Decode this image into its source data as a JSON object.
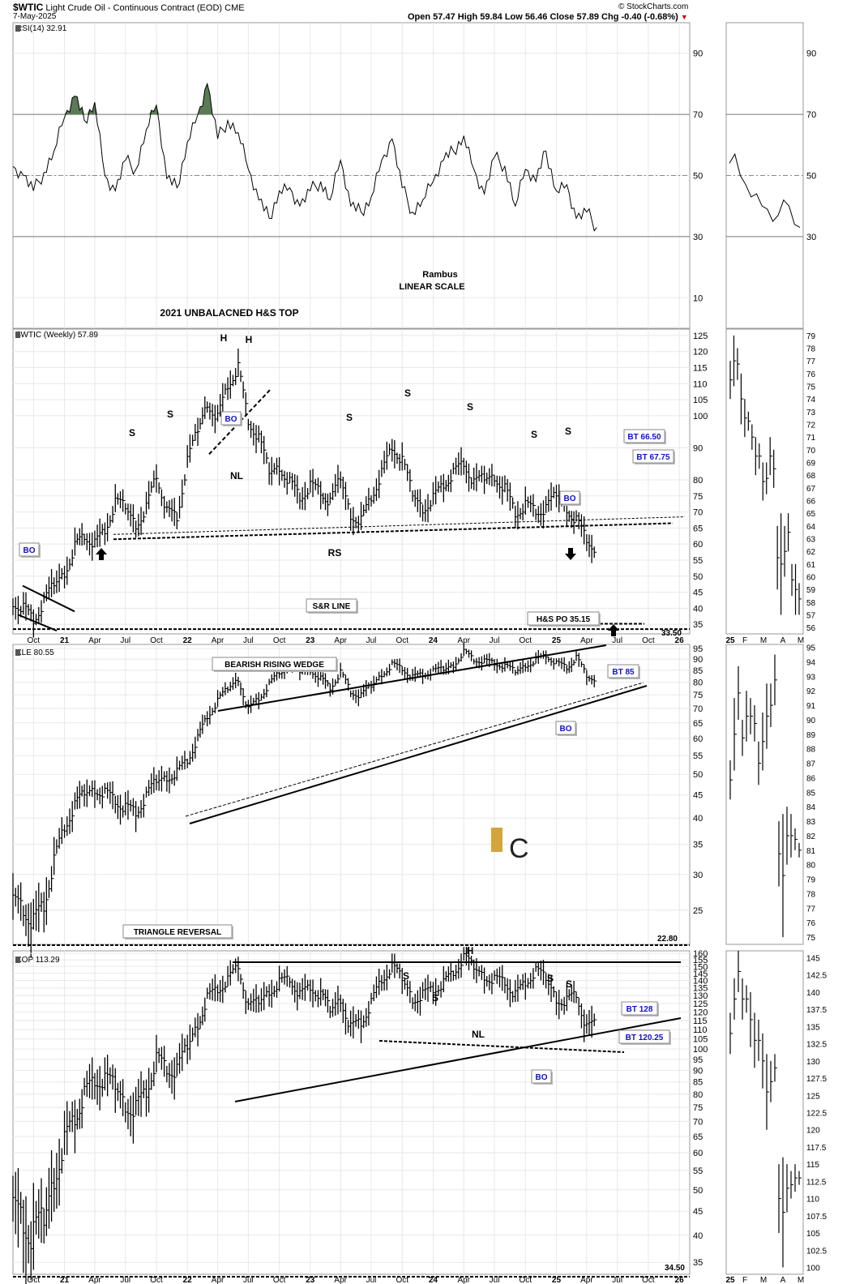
{
  "header": {
    "symbol": "$WTIC",
    "name": "Light Crude Oil - Continuous Contract (EOD)",
    "exchange": "CME",
    "date": "7-May-2025",
    "ohlc": "Open 57.47  High 59.84  Low 56.46  Close 57.89  Chg -0.40 (-0.68%)",
    "arrow": "▼",
    "credit": "© StockCharts.com"
  },
  "colors": {
    "rsi_fill": "#5b7a57",
    "label_text": "#1010cc",
    "grid": "#e8e8e8"
  },
  "chart_data": [
    {
      "type": "line",
      "name": "RSI",
      "title": "RSI(14) 32.91",
      "yticks": [
        10,
        30,
        50,
        70,
        90
      ],
      "ylim": [
        0,
        100
      ],
      "reference_lines": [
        30,
        50,
        70
      ],
      "xlim": [
        "2020-08-01",
        "2026-02-01"
      ],
      "x": [
        "2020-08-01",
        "2020-09-01",
        "2020-10-01",
        "2020-11-01",
        "2020-12-01",
        "2021-01-01",
        "2021-02-01",
        "2021-03-01",
        "2021-04-01",
        "2021-05-01",
        "2021-06-01",
        "2021-07-01",
        "2021-08-01",
        "2021-09-01",
        "2021-10-01",
        "2021-11-01",
        "2021-12-01",
        "2022-01-01",
        "2022-02-01",
        "2022-03-01",
        "2022-04-01",
        "2022-05-01",
        "2022-06-01",
        "2022-07-01",
        "2022-08-01",
        "2022-09-01",
        "2022-10-01",
        "2022-11-01",
        "2022-12-01",
        "2023-01-01",
        "2023-02-01",
        "2023-03-01",
        "2023-04-01",
        "2023-05-01",
        "2023-06-01",
        "2023-07-01",
        "2023-08-01",
        "2023-09-01",
        "2023-10-01",
        "2023-11-01",
        "2023-12-01",
        "2024-01-01",
        "2024-02-01",
        "2024-03-01",
        "2024-04-01",
        "2024-05-01",
        "2024-06-01",
        "2024-07-01",
        "2024-08-01",
        "2024-09-01",
        "2024-10-01",
        "2024-11-01",
        "2024-12-01",
        "2025-01-01",
        "2025-02-01",
        "2025-03-01",
        "2025-04-01",
        "2025-05-01"
      ],
      "values": [
        53,
        50,
        45,
        51,
        58,
        69,
        76,
        68,
        74,
        50,
        45,
        55,
        52,
        65,
        73,
        49,
        46,
        61,
        70,
        80,
        62,
        68,
        64,
        52,
        42,
        36,
        45,
        46,
        40,
        45,
        48,
        42,
        55,
        40,
        38,
        43,
        55,
        62,
        46,
        38,
        42,
        48,
        55,
        58,
        63,
        52,
        44,
        56,
        53,
        40,
        52,
        48,
        58,
        45,
        47,
        36,
        38,
        33
      ],
      "annotations": [
        "Rambus",
        "LINEAR SCALE",
        "2021 UNBALACNED H&S TOP"
      ]
    },
    {
      "type": "bar",
      "name": "WTIC",
      "title": "$WTIC (Weekly) 57.89",
      "yticks": [
        35,
        40,
        45,
        50,
        55,
        60,
        65,
        70,
        75,
        80,
        90,
        100,
        105,
        110,
        115,
        120,
        125
      ],
      "ylim": [
        32,
        127
      ],
      "xlim": [
        "2020-08-01",
        "2026-02-01"
      ],
      "x": [
        "2020-08-01",
        "2020-09-01",
        "2020-10-01",
        "2020-11-01",
        "2020-12-01",
        "2021-01-01",
        "2021-02-01",
        "2021-03-01",
        "2021-04-01",
        "2021-05-01",
        "2021-06-01",
        "2021-07-01",
        "2021-08-01",
        "2021-09-01",
        "2021-10-01",
        "2021-11-01",
        "2021-12-01",
        "2022-01-01",
        "2022-02-01",
        "2022-03-01",
        "2022-04-01",
        "2022-05-01",
        "2022-06-01",
        "2022-07-01",
        "2022-08-01",
        "2022-09-01",
        "2022-10-01",
        "2022-11-01",
        "2022-12-01",
        "2023-01-01",
        "2023-02-01",
        "2023-03-01",
        "2023-04-01",
        "2023-05-01",
        "2023-06-01",
        "2023-07-01",
        "2023-08-01",
        "2023-09-01",
        "2023-10-01",
        "2023-11-01",
        "2023-12-01",
        "2024-01-01",
        "2024-02-01",
        "2024-03-01",
        "2024-04-01",
        "2024-05-01",
        "2024-06-01",
        "2024-07-01",
        "2024-08-01",
        "2024-09-01",
        "2024-10-01",
        "2024-11-01",
        "2024-12-01",
        "2025-01-01",
        "2025-02-01",
        "2025-03-01",
        "2025-04-01",
        "2025-05-01"
      ],
      "values": [
        42,
        40,
        36,
        41,
        47,
        52,
        60,
        63,
        60,
        64,
        72,
        71,
        67,
        72,
        82,
        70,
        68,
        85,
        95,
        105,
        100,
        110,
        115,
        98,
        92,
        82,
        85,
        80,
        75,
        78,
        76,
        72,
        80,
        70,
        68,
        75,
        82,
        90,
        85,
        75,
        72,
        75,
        79,
        82,
        85,
        78,
        80,
        82,
        78,
        70,
        72,
        70,
        70,
        75,
        72,
        68,
        62,
        58
      ],
      "annotations": [
        "H",
        "H",
        "S",
        "S",
        "S",
        "S",
        "S",
        "S",
        "S",
        "NL",
        "RS",
        "BO",
        "BO",
        "BO",
        "S&R LINE",
        "H&S PO 35.15",
        "33.50",
        "BT 66.50",
        "BT 67.75"
      ]
    },
    {
      "type": "bar",
      "name": "XLE",
      "title": "XLE 80.55",
      "yticks": [
        25,
        30,
        35,
        40,
        45,
        50,
        55,
        60,
        65,
        70,
        75,
        80,
        85,
        90,
        95
      ],
      "ylim": [
        21,
        97
      ],
      "xlim": [
        "2020-08-01",
        "2026-02-01"
      ],
      "x": [
        "2020-08-01",
        "2020-09-01",
        "2020-10-01",
        "2020-11-01",
        "2020-12-01",
        "2021-01-01",
        "2021-02-01",
        "2021-03-01",
        "2021-04-01",
        "2021-05-01",
        "2021-06-01",
        "2021-07-01",
        "2021-08-01",
        "2021-09-01",
        "2021-10-01",
        "2021-11-01",
        "2021-12-01",
        "2022-01-01",
        "2022-02-01",
        "2022-03-01",
        "2022-04-01",
        "2022-05-01",
        "2022-06-01",
        "2022-07-01",
        "2022-08-01",
        "2022-09-01",
        "2022-10-01",
        "2022-11-01",
        "2022-12-01",
        "2023-01-01",
        "2023-02-01",
        "2023-03-01",
        "2023-04-01",
        "2023-05-01",
        "2023-06-01",
        "2023-07-01",
        "2023-08-01",
        "2023-09-01",
        "2023-10-01",
        "2023-11-01",
        "2023-12-01",
        "2024-01-01",
        "2024-02-01",
        "2024-03-01",
        "2024-04-01",
        "2024-05-01",
        "2024-06-01",
        "2024-07-01",
        "2024-08-01",
        "2024-09-01",
        "2024-10-01",
        "2024-11-01",
        "2024-12-01",
        "2025-01-01",
        "2025-02-01",
        "2025-03-01",
        "2025-04-01",
        "2025-05-01"
      ],
      "values": [
        27,
        26,
        24,
        26,
        32,
        38,
        42,
        45,
        47,
        46,
        44,
        42,
        41,
        44,
        48,
        50,
        51,
        54,
        60,
        67,
        72,
        77,
        82,
        70,
        74,
        79,
        84,
        86,
        84,
        86,
        82,
        78,
        84,
        76,
        74,
        78,
        84,
        88,
        86,
        82,
        83,
        84,
        85,
        88,
        94,
        90,
        89,
        88,
        86,
        84,
        88,
        90,
        92,
        88,
        86,
        90,
        82,
        80
      ],
      "annotations": [
        "BEARISH RISING WEDGE",
        "BT 85",
        "BO",
        "TRIANGLE REVERSAL",
        "22.80"
      ]
    },
    {
      "type": "bar",
      "name": "XOP",
      "title": "XOP 113.29",
      "yticks": [
        35,
        40,
        45,
        50,
        55,
        60,
        65,
        70,
        75,
        80,
        85,
        90,
        95,
        100,
        105,
        110,
        115,
        120,
        125,
        130,
        135,
        140,
        145,
        150,
        155,
        160
      ],
      "ylim": [
        33,
        162
      ],
      "xlim": [
        "2020-08-01",
        "2026-02-01"
      ],
      "x": [
        "2020-08-01",
        "2020-09-01",
        "2020-10-01",
        "2020-11-01",
        "2020-12-01",
        "2021-01-01",
        "2021-02-01",
        "2021-03-01",
        "2021-04-01",
        "2021-05-01",
        "2021-06-01",
        "2021-07-01",
        "2021-08-01",
        "2021-09-01",
        "2021-10-01",
        "2021-11-01",
        "2021-12-01",
        "2022-01-01",
        "2022-02-01",
        "2022-03-01",
        "2022-04-01",
        "2022-05-01",
        "2022-06-01",
        "2022-07-01",
        "2022-08-01",
        "2022-09-01",
        "2022-10-01",
        "2022-11-01",
        "2022-12-01",
        "2023-01-01",
        "2023-02-01",
        "2023-03-01",
        "2023-04-01",
        "2023-05-01",
        "2023-06-01",
        "2023-07-01",
        "2023-08-01",
        "2023-09-01",
        "2023-10-01",
        "2023-11-01",
        "2023-12-01",
        "2024-01-01",
        "2024-02-01",
        "2024-03-01",
        "2024-04-01",
        "2024-05-01",
        "2024-06-01",
        "2024-07-01",
        "2024-08-01",
        "2024-09-01",
        "2024-10-01",
        "2024-11-01",
        "2024-12-01",
        "2025-01-01",
        "2025-02-01",
        "2025-03-01",
        "2025-04-01",
        "2025-05-01"
      ],
      "values": [
        45,
        42,
        38,
        42,
        55,
        65,
        72,
        80,
        85,
        84,
        82,
        78,
        76,
        82,
        95,
        90,
        88,
        100,
        115,
        130,
        135,
        140,
        150,
        120,
        125,
        135,
        140,
        142,
        130,
        135,
        128,
        120,
        130,
        112,
        115,
        125,
        140,
        148,
        140,
        130,
        132,
        135,
        138,
        145,
        155,
        148,
        145,
        142,
        140,
        130,
        138,
        145,
        140,
        130,
        128,
        132,
        110,
        113
      ],
      "annotations": [
        "H",
        "S",
        "S",
        "S",
        "S",
        "NL",
        "BO",
        "BT 128",
        "BT 120.25",
        "34.50"
      ]
    }
  ],
  "x_axis": [
    "Oct",
    "21",
    "Apr",
    "Jul",
    "Oct",
    "22",
    "Apr",
    "Jul",
    "Oct",
    "23",
    "Apr",
    "Jul",
    "Oct",
    "24",
    "Apr",
    "Jul",
    "Oct",
    "25",
    "Apr",
    "Jul",
    "Oct",
    "26"
  ],
  "zoom_panels": {
    "x_axis": [
      "25",
      "F",
      "M",
      "A",
      "M"
    ],
    "rsi": {
      "yticks": [
        30,
        50,
        70,
        90
      ],
      "values": [
        54,
        57,
        50,
        47,
        43,
        44,
        40,
        39,
        35,
        37,
        42,
        40,
        34,
        33
      ],
      "ylim": [
        0,
        100
      ]
    },
    "wtic": {
      "yticks": [
        56,
        57,
        58,
        59,
        60,
        61,
        62,
        63,
        64,
        65,
        66,
        67,
        68,
        69,
        70,
        71,
        72,
        73,
        74,
        75,
        76,
        77,
        78,
        79
      ],
      "ylim": [
        55.5,
        79.5
      ],
      "bars": [
        [
          74,
          77
        ],
        [
          75,
          79
        ],
        [
          75.5,
          78
        ],
        [
          72,
          76
        ],
        [
          71,
          74
        ],
        [
          71.5,
          73
        ],
        [
          70,
          72
        ],
        [
          68,
          71
        ],
        [
          68.5,
          70.5
        ],
        [
          66,
          69
        ],
        [
          66.5,
          69
        ],
        [
          68,
          71
        ],
        [
          67,
          70
        ],
        [
          59,
          64
        ],
        [
          57,
          65
        ],
        [
          60,
          64
        ],
        [
          62,
          65
        ],
        [
          58.5,
          61
        ],
        [
          57,
          61
        ],
        [
          57,
          59.5
        ]
      ]
    },
    "xle": {
      "yticks": [
        75,
        76,
        77,
        78,
        79,
        80,
        81,
        82,
        83,
        84,
        85,
        86,
        87,
        88,
        89,
        90,
        91,
        92,
        93,
        94,
        95
      ],
      "ylim": [
        74.5,
        95.2
      ],
      "bars": [
        [
          84.5,
          87.2
        ],
        [
          86.5,
          91.5
        ],
        [
          90,
          93.7
        ],
        [
          87.5,
          90
        ],
        [
          88.5,
          92
        ],
        [
          89,
          91.5
        ],
        [
          88.5,
          91
        ],
        [
          85.5,
          88.5
        ],
        [
          86.5,
          90.5
        ],
        [
          88,
          92.5
        ],
        [
          89.5,
          92.5
        ],
        [
          91,
          94.5
        ],
        [
          78.5,
          83
        ],
        [
          75,
          83.5
        ],
        [
          80,
          84
        ],
        [
          80.5,
          83.5
        ],
        [
          81,
          82.5
        ],
        [
          80.5,
          81.5
        ]
      ]
    },
    "xop": {
      "yticks": [
        100,
        102.5,
        105,
        107.5,
        110,
        112.5,
        115,
        117.5,
        120,
        122.5,
        125,
        127.5,
        130,
        132.5,
        135,
        137.5,
        140,
        142.5,
        145
      ],
      "ylim": [
        99,
        146
      ],
      "bars": [
        [
          131,
          137
        ],
        [
          136,
          142
        ],
        [
          140,
          146
        ],
        [
          136,
          142
        ],
        [
          137,
          141
        ],
        [
          132,
          140
        ],
        [
          129,
          137
        ],
        [
          130,
          136
        ],
        [
          126,
          134
        ],
        [
          120,
          131
        ],
        [
          124,
          130
        ],
        [
          127,
          131
        ],
        [
          105,
          115
        ],
        [
          100,
          116
        ],
        [
          108,
          115
        ],
        [
          110,
          114
        ],
        [
          111,
          115
        ],
        [
          112,
          114
        ]
      ]
    }
  }
}
